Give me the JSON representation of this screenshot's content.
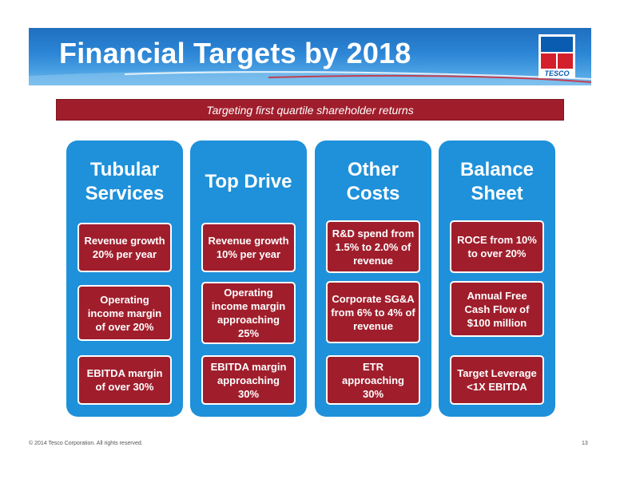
{
  "slide": {
    "title": "Financial Targets by 2018",
    "banner": "Targeting first quartile shareholder returns",
    "logo_text": "TESCO",
    "footer_copyright": "© 2014 Tesco Corporation. All rights reserved.",
    "page_number": "13"
  },
  "colors": {
    "header_blue": "#1f6fc0",
    "column_blue": "#1e91da",
    "box_red": "#a01e2c"
  },
  "columns": [
    {
      "title_line1": "Tubular",
      "title_line2": "Services",
      "items": [
        "Revenue growth 20% per year",
        "Operating income margin of over 20%",
        "EBITDA margin of over 30%"
      ]
    },
    {
      "title_line1": "Top Drive",
      "title_line2": "",
      "items": [
        "Revenue growth 10% per year",
        "Operating income margin approaching 25%",
        "EBITDA margin approaching 30%"
      ]
    },
    {
      "title_line1": "Other",
      "title_line2": "Costs",
      "items": [
        "R&D spend from 1.5% to 2.0% of revenue",
        "Corporate SG&A from 6% to 4% of revenue",
        "ETR approaching 30%"
      ]
    },
    {
      "title_line1": "Balance",
      "title_line2": "Sheet",
      "items": [
        "ROCE from 10% to over 20%",
        "Annual Free Cash Flow of $100 million",
        "Target Leverage <1X EBITDA"
      ]
    }
  ]
}
